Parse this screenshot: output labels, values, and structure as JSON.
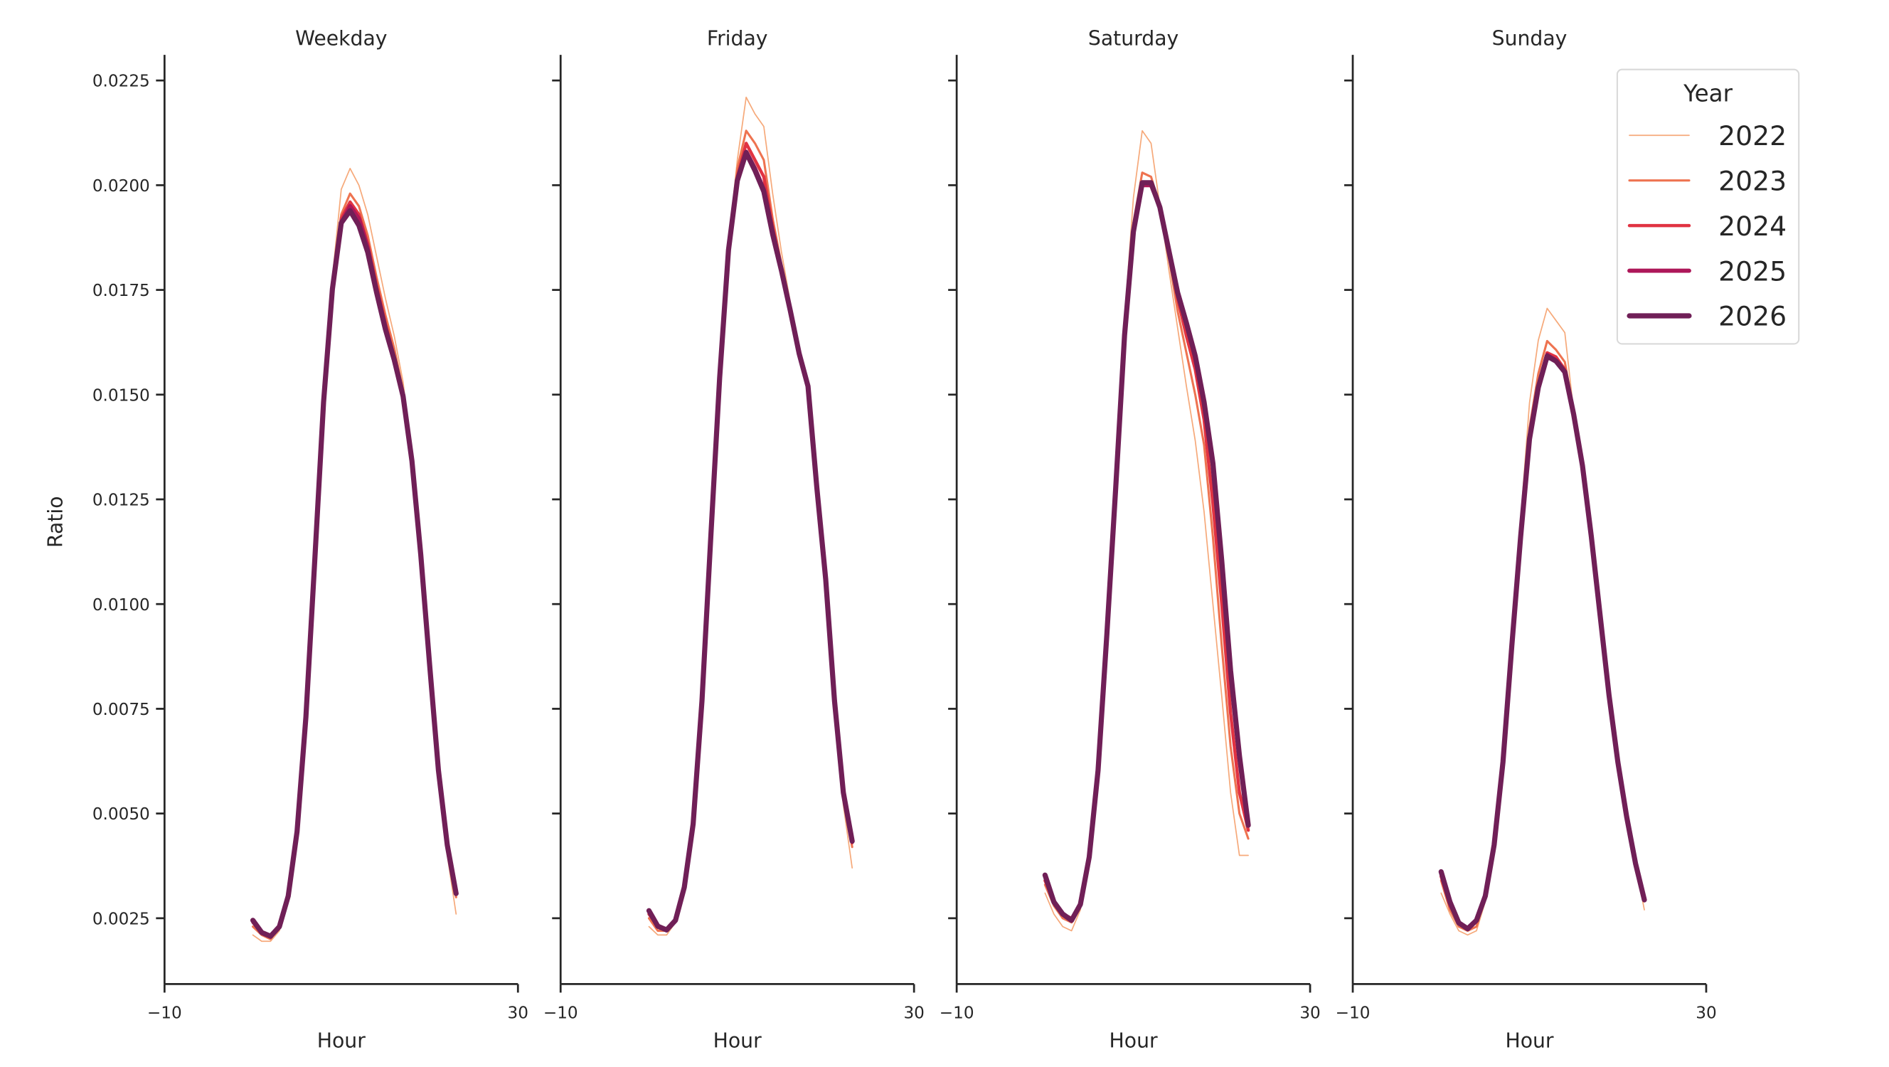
{
  "chart_data": {
    "type": "line",
    "title": "",
    "xlabel": "Hour",
    "ylabel": "Ratio",
    "xlim": [
      -10,
      30
    ],
    "ylim": [
      0.00095,
      0.0231
    ],
    "x_ticks": [
      -10,
      30
    ],
    "x_tick_labels": [
      "−10",
      "30"
    ],
    "y_ticks": [
      0.0025,
      0.005,
      0.0075,
      0.01,
      0.0125,
      0.015,
      0.0175,
      0.02,
      0.0225
    ],
    "y_tick_labels": [
      "0.0025",
      "0.0050",
      "0.0075",
      "0.0100",
      "0.0125",
      "0.0150",
      "0.0175",
      "0.0200",
      "0.0225"
    ],
    "grid": false,
    "legend": {
      "title": "Year",
      "position": "upper right",
      "entries": [
        {
          "label": "2022",
          "color": "#f6a97a",
          "width": 1.0
        },
        {
          "label": "2023",
          "color": "#ee7350",
          "width": 1.8
        },
        {
          "label": "2024",
          "color": "#e13342",
          "width": 2.6
        },
        {
          "label": "2025",
          "color": "#ad1759",
          "width": 3.4
        },
        {
          "label": "2026",
          "color": "#701f57",
          "width": 4.2
        }
      ]
    },
    "x": [
      0,
      1,
      2,
      3,
      4,
      5,
      6,
      7,
      8,
      9,
      10,
      11,
      12,
      13,
      14,
      15,
      16,
      17,
      18,
      19,
      20,
      21,
      22,
      23
    ],
    "panels": [
      {
        "title": "Weekday",
        "series": [
          {
            "name": "2022",
            "values": [
              0.0021,
              0.00195,
              0.00195,
              0.0022,
              0.003,
              0.0046,
              0.0073,
              0.0111,
              0.015,
              0.0178,
              0.0199,
              0.0204,
              0.02,
              0.0193,
              0.0183,
              0.0173,
              0.0164,
              0.0153,
              0.0135,
              0.0111,
              0.0084,
              0.0059,
              0.004,
              0.0026
            ]
          },
          {
            "name": "2023",
            "values": [
              0.0023,
              0.0021,
              0.002,
              0.0023,
              0.003,
              0.0046,
              0.0073,
              0.011,
              0.0149,
              0.0176,
              0.0193,
              0.0198,
              0.0195,
              0.0188,
              0.0178,
              0.0169,
              0.0161,
              0.0151,
              0.0135,
              0.0112,
              0.0085,
              0.006,
              0.0042,
              0.003
            ]
          },
          {
            "name": "2024",
            "values": [
              0.0024,
              0.00215,
              0.00205,
              0.0023,
              0.003,
              0.0046,
              0.0073,
              0.011,
              0.0148,
              0.0176,
              0.0192,
              0.0196,
              0.0193,
              0.0186,
              0.0176,
              0.0167,
              0.0159,
              0.015,
              0.0134,
              0.0112,
              0.0086,
              0.006,
              0.0042,
              0.0031
            ]
          },
          {
            "name": "2025",
            "values": [
              0.00245,
              0.00216,
              0.00207,
              0.0023,
              0.00303,
              0.00457,
              0.0073,
              0.01103,
              0.01482,
              0.01752,
              0.0191,
              0.0195,
              0.0192,
              0.0185,
              0.0175,
              0.0166,
              0.0158,
              0.015,
              0.01342,
              0.01118,
              0.00856,
              0.00603,
              0.00425,
              0.00309
            ]
          },
          {
            "name": "2026",
            "values": [
              0.00245,
              0.00216,
              0.00207,
              0.0023,
              0.00303,
              0.00457,
              0.0073,
              0.01103,
              0.01482,
              0.01752,
              0.0191,
              0.01939,
              0.01904,
              0.0184,
              0.01744,
              0.01656,
              0.01583,
              0.01496,
              0.01342,
              0.01118,
              0.00856,
              0.00603,
              0.00425,
              0.00309
            ]
          }
        ]
      },
      {
        "title": "Friday",
        "series": [
          {
            "name": "2022",
            "values": [
              0.0023,
              0.0021,
              0.0021,
              0.0024,
              0.0032,
              0.0047,
              0.0077,
              0.0117,
              0.0156,
              0.0186,
              0.0206,
              0.0221,
              0.0217,
              0.0214,
              0.0198,
              0.0184,
              0.0172,
              0.016,
              0.015,
              0.0126,
              0.0102,
              0.0073,
              0.0052,
              0.0037
            ]
          },
          {
            "name": "2023",
            "values": [
              0.0025,
              0.0022,
              0.0022,
              0.0024,
              0.0032,
              0.0047,
              0.0077,
              0.0116,
              0.0155,
              0.0185,
              0.0204,
              0.0213,
              0.021,
              0.0206,
              0.0192,
              0.0181,
              0.0171,
              0.016,
              0.0152,
              0.0128,
              0.0105,
              0.0076,
              0.0054,
              0.0042
            ]
          },
          {
            "name": "2024",
            "values": [
              0.0026,
              0.0023,
              0.0022,
              0.00245,
              0.00324,
              0.00475,
              0.00769,
              0.01161,
              0.0154,
              0.01845,
              0.0202,
              0.021,
              0.0206,
              0.0202,
              0.019,
              0.018,
              0.017,
              0.016,
              0.0152,
              0.01278,
              0.0106,
              0.00769,
              0.0055,
              0.0043
            ]
          },
          {
            "name": "2025",
            "values": [
              0.00268,
              0.00231,
              0.00222,
              0.00245,
              0.00324,
              0.00475,
              0.00769,
              0.01161,
              0.0154,
              0.01845,
              0.02011,
              0.0208,
              0.0204,
              0.0199,
              0.0189,
              0.018,
              0.017,
              0.016,
              0.0152,
              0.01278,
              0.0106,
              0.00769,
              0.0055,
              0.00434
            ]
          },
          {
            "name": "2026",
            "values": [
              0.00268,
              0.00231,
              0.00222,
              0.00245,
              0.00324,
              0.00475,
              0.00769,
              0.01161,
              0.0154,
              0.01845,
              0.02011,
              0.02078,
              0.02035,
              0.01985,
              0.01883,
              0.01796,
              0.017,
              0.01598,
              0.0152,
              0.01278,
              0.0106,
              0.00769,
              0.0055,
              0.00434
            ]
          }
        ]
      },
      {
        "title": "Saturday",
        "series": [
          {
            "name": "2022",
            "values": [
              0.0031,
              0.0026,
              0.0023,
              0.0022,
              0.0027,
              0.0039,
              0.006,
              0.0093,
              0.013,
              0.0168,
              0.0197,
              0.0213,
              0.021,
              0.0195,
              0.018,
              0.0166,
              0.0152,
              0.0139,
              0.0122,
              0.01,
              0.0078,
              0.0055,
              0.004,
              0.004
            ]
          },
          {
            "name": "2023",
            "values": [
              0.0033,
              0.0028,
              0.0025,
              0.0024,
              0.0028,
              0.004,
              0.006,
              0.0093,
              0.0129,
              0.0166,
              0.0191,
              0.0203,
              0.0202,
              0.0195,
              0.0183,
              0.017,
              0.016,
              0.015,
              0.0138,
              0.0116,
              0.009,
              0.0066,
              0.005,
              0.0044
            ]
          },
          {
            "name": "2024",
            "values": [
              0.0034,
              0.0029,
              0.0026,
              0.0025,
              0.0028,
              0.004,
              0.006,
              0.0093,
              0.0128,
              0.0165,
              0.0189,
              0.02,
              0.02,
              0.0195,
              0.0184,
              0.0173,
              0.0164,
              0.0156,
              0.0144,
              0.0124,
              0.01,
              0.0074,
              0.0055,
              0.0046
            ]
          },
          {
            "name": "2025",
            "values": [
              0.00353,
              0.00289,
              0.0026,
              0.00245,
              0.00283,
              0.00396,
              0.00603,
              0.00929,
              0.01278,
              0.01642,
              0.01889,
              0.02,
              0.02,
              0.01947,
              0.01845,
              0.01744,
              0.01671,
              0.01592,
              0.01482,
              0.01336,
              0.01103,
              0.00841,
              0.00638,
              0.00472
            ]
          },
          {
            "name": "2026",
            "values": [
              0.00353,
              0.00289,
              0.0026,
              0.00245,
              0.00283,
              0.00396,
              0.00603,
              0.00929,
              0.01278,
              0.01642,
              0.01889,
              0.02006,
              0.02006,
              0.01947,
              0.01845,
              0.01744,
              0.01671,
              0.01592,
              0.01482,
              0.01336,
              0.01103,
              0.00841,
              0.00638,
              0.00472
            ]
          }
        ]
      },
      {
        "title": "Sunday",
        "series": [
          {
            "name": "2022",
            "values": [
              0.0031,
              0.0026,
              0.0022,
              0.0021,
              0.0022,
              0.0029,
              0.0042,
              0.0062,
              0.0091,
              0.012,
              0.0148,
              0.0163,
              0.01706,
              0.01677,
              0.01648,
              0.0146,
              0.0133,
              0.0116,
              0.0097,
              0.0078,
              0.0062,
              0.0049,
              0.0038,
              0.0027
            ]
          },
          {
            "name": "2023",
            "values": [
              0.0034,
              0.0027,
              0.0023,
              0.0022,
              0.0023,
              0.003,
              0.0042,
              0.0062,
              0.009,
              0.0117,
              0.0142,
              0.0155,
              0.01628,
              0.01607,
              0.01578,
              0.0146,
              0.0133,
              0.0116,
              0.0097,
              0.0078,
              0.0062,
              0.0049,
              0.0038,
              0.0029
            ]
          },
          {
            "name": "2024",
            "values": [
              0.0035,
              0.0028,
              0.0024,
              0.00225,
              0.00245,
              0.00303,
              0.00425,
              0.00623,
              0.009,
              0.01161,
              0.01394,
              0.01517,
              0.016,
              0.0159,
              0.0156,
              0.01453,
              0.0133,
              0.01161,
              0.00972,
              0.00783,
              0.00623,
              0.00492,
              0.00381,
              0.00294
            ]
          },
          {
            "name": "2025",
            "values": [
              0.00361,
              0.00289,
              0.00239,
              0.00225,
              0.00245,
              0.00303,
              0.00425,
              0.00623,
              0.009,
              0.01161,
              0.01394,
              0.01517,
              0.01595,
              0.01582,
              0.01555,
              0.01453,
              0.0133,
              0.01161,
              0.00972,
              0.00783,
              0.00623,
              0.00492,
              0.00381,
              0.00294
            ]
          },
          {
            "name": "2026",
            "values": [
              0.00361,
              0.00289,
              0.00239,
              0.00225,
              0.00245,
              0.00303,
              0.00425,
              0.00623,
              0.009,
              0.01161,
              0.01394,
              0.01517,
              0.01592,
              0.0158,
              0.01554,
              0.01453,
              0.0133,
              0.01161,
              0.00972,
              0.00783,
              0.00623,
              0.00492,
              0.00381,
              0.00294
            ]
          }
        ]
      }
    ]
  }
}
